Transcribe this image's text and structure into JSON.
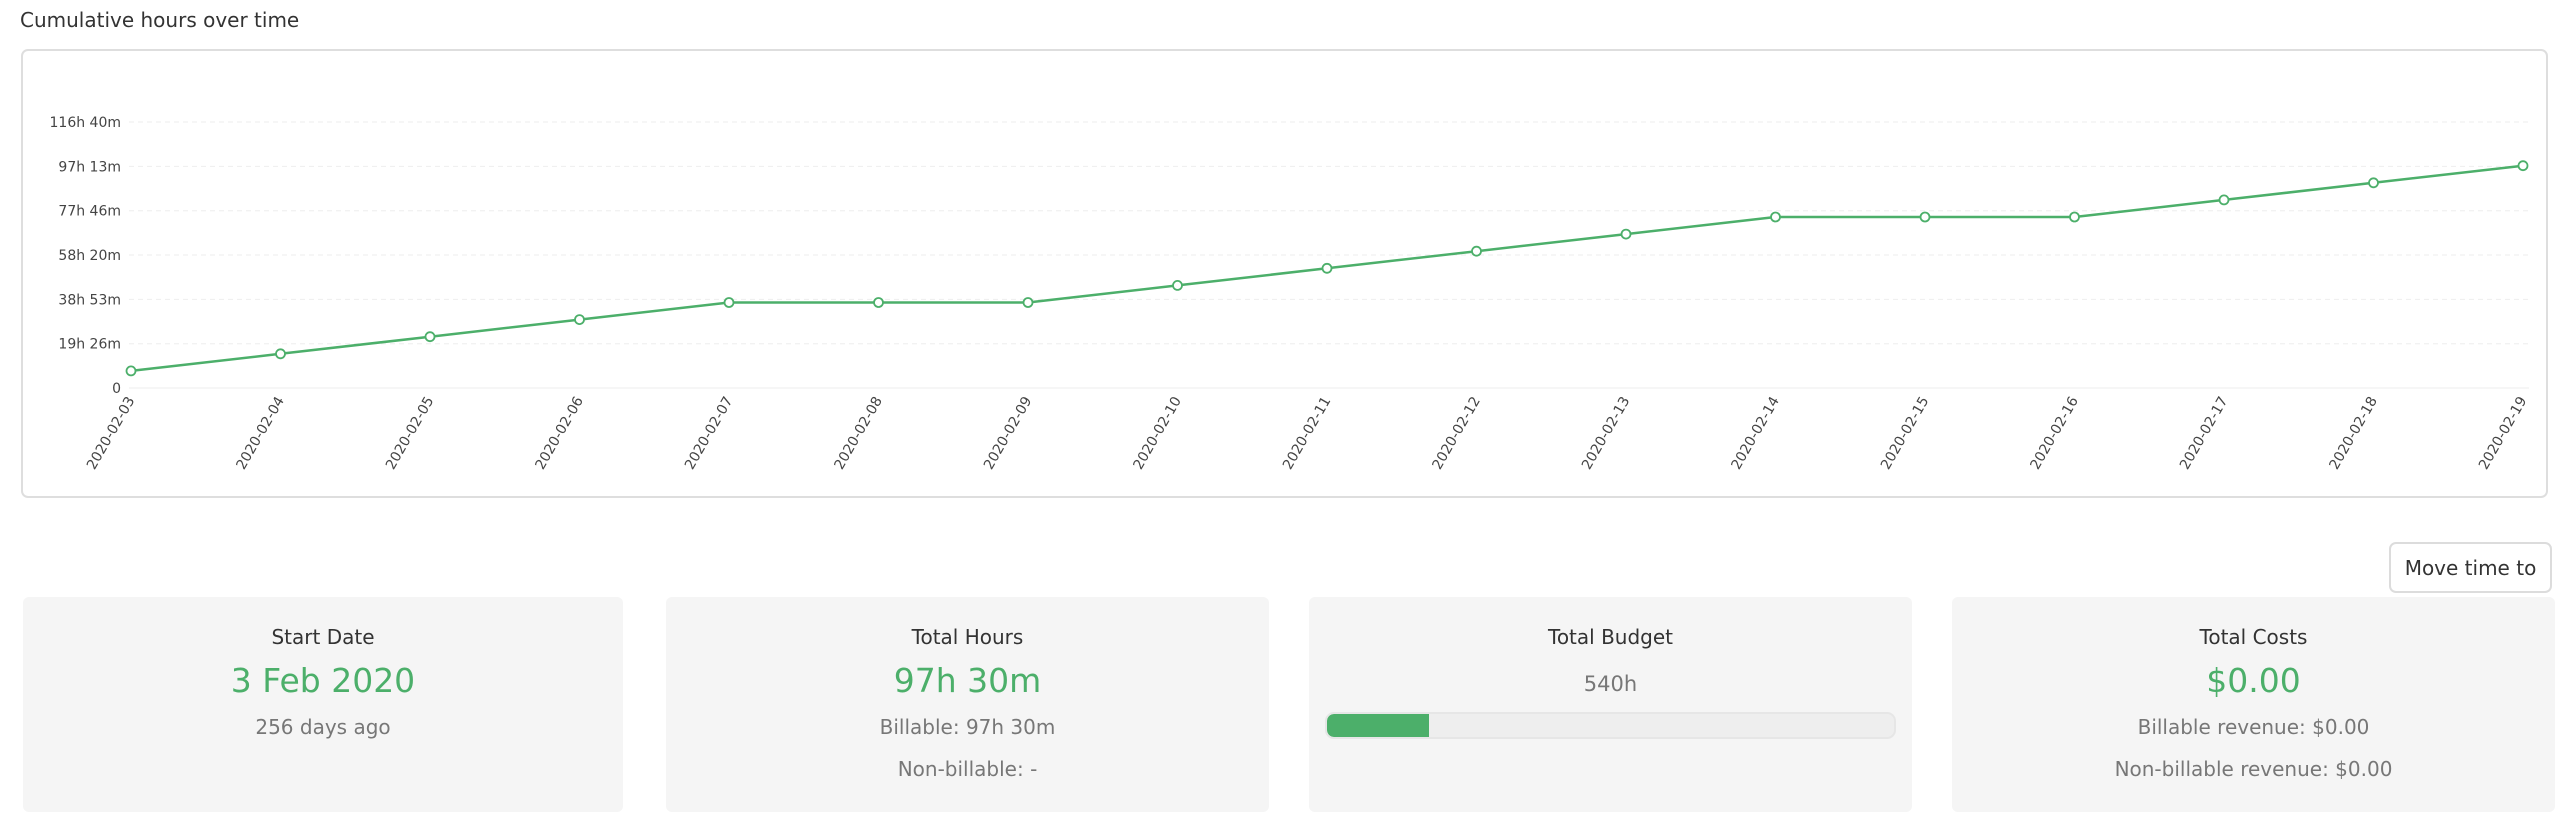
{
  "chart": {
    "title": "Cumulative hours over time"
  },
  "chart_data": {
    "type": "line",
    "title": "Cumulative hours over time",
    "xlabel": "",
    "ylabel": "",
    "y_unit": "minutes",
    "ylim_minutes": [
      0,
      7000
    ],
    "y_ticks": [
      {
        "minutes": 0,
        "label": "0"
      },
      {
        "minutes": 1166,
        "label": "19h 26m"
      },
      {
        "minutes": 2333,
        "label": "38h 53m"
      },
      {
        "minutes": 3500,
        "label": "58h 20m"
      },
      {
        "minutes": 4666,
        "label": "77h 46m"
      },
      {
        "minutes": 5833,
        "label": "97h 13m"
      },
      {
        "minutes": 7000,
        "label": "116h 40m"
      }
    ],
    "grid": true,
    "legend": "none",
    "color": "#4caf6a",
    "x": [
      "2020-02-03",
      "2020-02-04",
      "2020-02-05",
      "2020-02-06",
      "2020-02-07",
      "2020-02-08",
      "2020-02-09",
      "2020-02-10",
      "2020-02-11",
      "2020-02-12",
      "2020-02-13",
      "2020-02-14",
      "2020-02-15",
      "2020-02-16",
      "2020-02-17",
      "2020-02-18",
      "2020-02-19"
    ],
    "series": [
      {
        "values": [
          450,
          900,
          1350,
          1800,
          2250,
          2250,
          2250,
          2700,
          3150,
          3600,
          4050,
          4500,
          4500,
          4500,
          4950,
          5400,
          5850
        ]
      }
    ]
  },
  "actions": {
    "move_time_label": "Move time to"
  },
  "cards": {
    "start_date": {
      "label": "Start Date",
      "value": "3 Feb 2020",
      "sub": "256 days ago"
    },
    "total_hours": {
      "label": "Total Hours",
      "value": "97h 30m",
      "billable": "Billable: 97h 30m",
      "non_billable": "Non-billable: -"
    },
    "total_budget": {
      "label": "Total Budget",
      "value": "540h",
      "progress_fraction": 0.18
    },
    "total_costs": {
      "label": "Total Costs",
      "value": "$0.00",
      "billable_revenue": "Billable revenue: $0.00",
      "non_billable_revenue": "Non-billable revenue: $0.00"
    }
  }
}
